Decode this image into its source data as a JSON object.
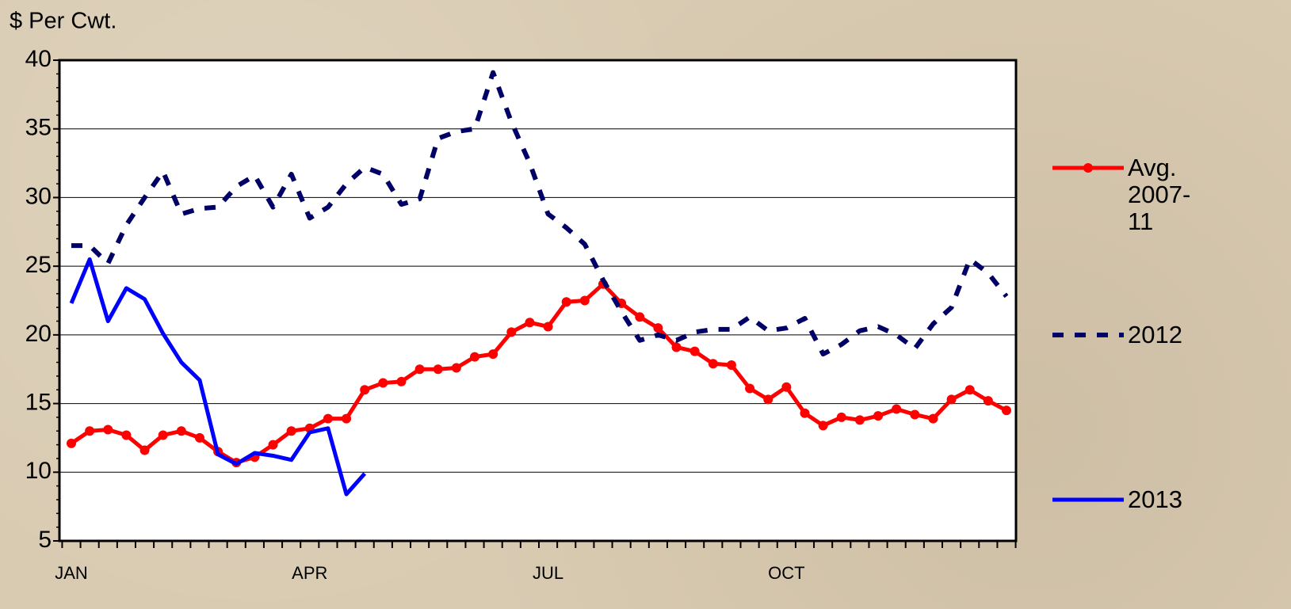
{
  "chart_data": {
    "type": "line",
    "ylabel": "$ Per Cwt.",
    "categories": [
      "JAN",
      null,
      null,
      null,
      null,
      null,
      null,
      null,
      null,
      null,
      null,
      null,
      null,
      "APR",
      null,
      null,
      null,
      null,
      null,
      null,
      null,
      null,
      null,
      null,
      null,
      null,
      "JUL",
      null,
      null,
      null,
      null,
      null,
      null,
      null,
      null,
      null,
      null,
      null,
      null,
      "OCT",
      null,
      null,
      null,
      null,
      null,
      null,
      null,
      null,
      null,
      null,
      null,
      null
    ],
    "ylim": [
      5,
      40
    ],
    "yticks": [
      5,
      10,
      15,
      20,
      25,
      30,
      35,
      40
    ],
    "grid": true,
    "legend": "right",
    "series": [
      {
        "name": "Avg. 2007-11",
        "color": "#ff0000",
        "marker": true,
        "dashed": false,
        "values": [
          12.1,
          13.0,
          13.1,
          12.7,
          11.6,
          12.7,
          13.0,
          12.5,
          11.5,
          10.7,
          11.1,
          12.0,
          13.0,
          13.2,
          13.9,
          13.9,
          16.0,
          16.5,
          16.6,
          17.5,
          17.5,
          17.6,
          18.4,
          18.6,
          20.2,
          20.9,
          20.6,
          22.4,
          22.5,
          23.7,
          22.3,
          21.3,
          20.5,
          19.1,
          18.8,
          17.9,
          17.8,
          16.1,
          15.3,
          16.2,
          14.3,
          13.4,
          14.0,
          13.8,
          14.1,
          14.6,
          14.2,
          13.9,
          15.3,
          16.0,
          15.2,
          14.5
        ]
      },
      {
        "name": "2012",
        "color": "#000066",
        "marker": false,
        "dashed": true,
        "values": [
          26.5,
          26.5,
          25.2,
          28.0,
          30.0,
          31.9,
          28.8,
          29.2,
          29.3,
          30.8,
          31.6,
          29.3,
          31.7,
          28.5,
          29.3,
          31.0,
          32.2,
          31.7,
          29.5,
          29.9,
          34.3,
          34.8,
          35.0,
          39.1,
          35.5,
          32.5,
          28.8,
          27.8,
          26.6,
          24.0,
          21.7,
          19.6,
          20.0,
          19.6,
          20.2,
          20.4,
          20.4,
          21.3,
          20.3,
          20.5,
          21.2,
          18.6,
          19.3,
          20.3,
          20.6,
          20.0,
          19.0,
          20.8,
          22.0,
          25.5,
          24.5,
          22.8
        ]
      },
      {
        "name": "2013",
        "color": "#0000ff",
        "marker": false,
        "dashed": false,
        "values": [
          22.3,
          25.5,
          21.0,
          23.4,
          22.6,
          20.1,
          18.0,
          16.7,
          11.3,
          10.6,
          11.4,
          11.2,
          10.9,
          12.9,
          13.2,
          8.4,
          9.9,
          null,
          null,
          null,
          null,
          null,
          null,
          null,
          null,
          null,
          null,
          null,
          null,
          null,
          null,
          null,
          null,
          null,
          null,
          null,
          null,
          null,
          null,
          null,
          null,
          null,
          null,
          null,
          null,
          null,
          null,
          null,
          null,
          null,
          null,
          null
        ]
      }
    ]
  }
}
